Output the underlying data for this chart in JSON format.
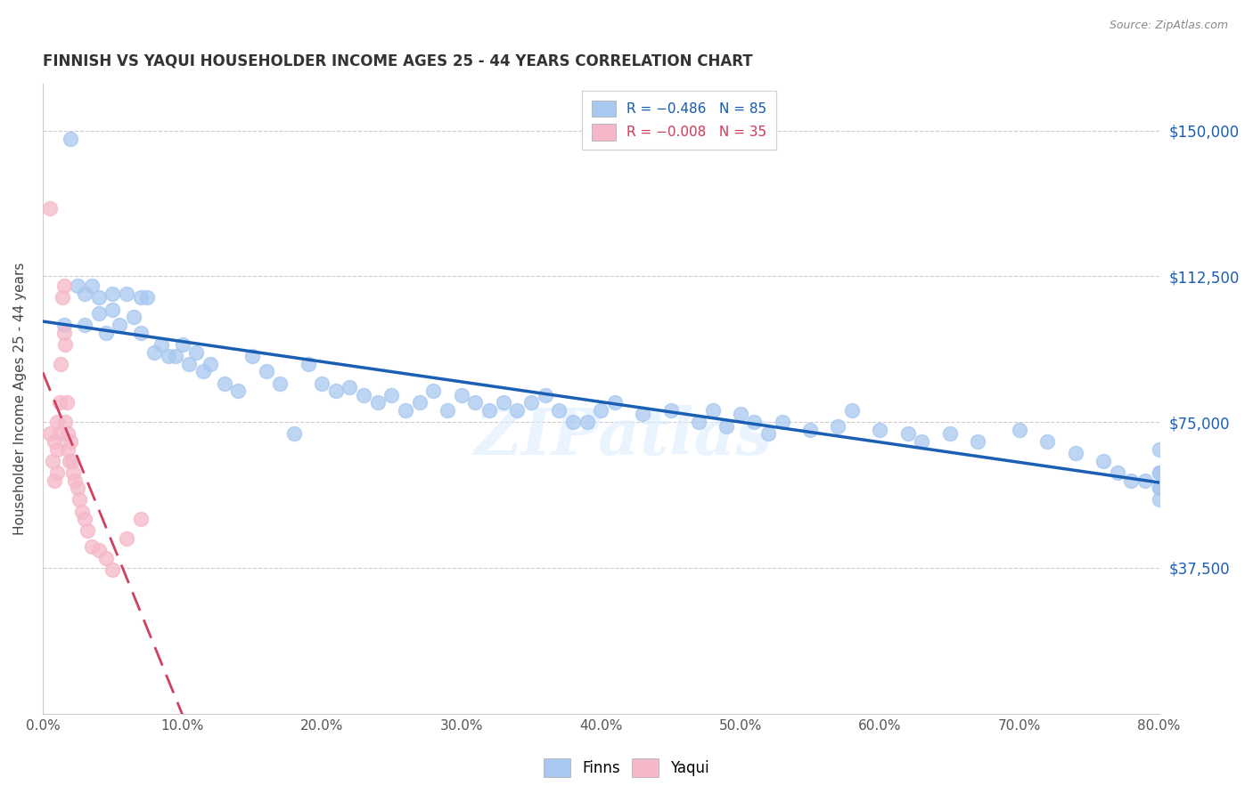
{
  "title": "FINNISH VS YAQUI HOUSEHOLDER INCOME AGES 25 - 44 YEARS CORRELATION CHART",
  "source": "Source: ZipAtlas.com",
  "ylabel": "Householder Income Ages 25 - 44 years",
  "xlabel_ticks": [
    "0.0%",
    "10.0%",
    "20.0%",
    "30.0%",
    "40.0%",
    "50.0%",
    "60.0%",
    "70.0%",
    "80.0%"
  ],
  "ytick_labels": [
    "$37,500",
    "$75,000",
    "$112,500",
    "$150,000"
  ],
  "ytick_values": [
    37500,
    75000,
    112500,
    150000
  ],
  "ylim": [
    0,
    162000
  ],
  "xlim": [
    0,
    0.8
  ],
  "blue_color": "#a8c8f0",
  "pink_color": "#f5b8c8",
  "blue_line_color": "#1a5fb4",
  "pink_line_color": "#d04060",
  "watermark": "ZIPatlas",
  "finns_x": [
    0.015,
    0.02,
    0.025,
    0.03,
    0.03,
    0.035,
    0.04,
    0.04,
    0.045,
    0.05,
    0.05,
    0.055,
    0.06,
    0.065,
    0.07,
    0.07,
    0.075,
    0.08,
    0.085,
    0.09,
    0.095,
    0.1,
    0.105,
    0.11,
    0.115,
    0.12,
    0.13,
    0.14,
    0.15,
    0.16,
    0.17,
    0.18,
    0.19,
    0.2,
    0.21,
    0.22,
    0.23,
    0.24,
    0.25,
    0.26,
    0.27,
    0.28,
    0.29,
    0.3,
    0.31,
    0.32,
    0.33,
    0.34,
    0.35,
    0.36,
    0.37,
    0.38,
    0.39,
    0.4,
    0.41,
    0.43,
    0.45,
    0.47,
    0.48,
    0.49,
    0.5,
    0.51,
    0.52,
    0.53,
    0.55,
    0.57,
    0.58,
    0.6,
    0.62,
    0.63,
    0.65,
    0.67,
    0.7,
    0.72,
    0.74,
    0.76,
    0.77,
    0.78,
    0.79,
    0.8,
    0.8,
    0.8,
    0.8,
    0.8,
    0.8
  ],
  "finns_y": [
    100000,
    148000,
    110000,
    108000,
    100000,
    110000,
    107000,
    103000,
    98000,
    108000,
    104000,
    100000,
    108000,
    102000,
    107000,
    98000,
    107000,
    93000,
    95000,
    92000,
    92000,
    95000,
    90000,
    93000,
    88000,
    90000,
    85000,
    83000,
    92000,
    88000,
    85000,
    72000,
    90000,
    85000,
    83000,
    84000,
    82000,
    80000,
    82000,
    78000,
    80000,
    83000,
    78000,
    82000,
    80000,
    78000,
    80000,
    78000,
    80000,
    82000,
    78000,
    75000,
    75000,
    78000,
    80000,
    77000,
    78000,
    75000,
    78000,
    74000,
    77000,
    75000,
    72000,
    75000,
    73000,
    74000,
    78000,
    73000,
    72000,
    70000,
    72000,
    70000,
    73000,
    70000,
    67000,
    65000,
    62000,
    60000,
    60000,
    58000,
    62000,
    68000,
    55000,
    58000,
    62000
  ],
  "yaqui_x": [
    0.005,
    0.005,
    0.007,
    0.008,
    0.008,
    0.01,
    0.01,
    0.01,
    0.012,
    0.012,
    0.013,
    0.014,
    0.015,
    0.015,
    0.016,
    0.016,
    0.017,
    0.018,
    0.018,
    0.019,
    0.02,
    0.021,
    0.022,
    0.023,
    0.025,
    0.026,
    0.028,
    0.03,
    0.032,
    0.035,
    0.04,
    0.045,
    0.05,
    0.06,
    0.07
  ],
  "yaqui_y": [
    130000,
    72000,
    65000,
    70000,
    60000,
    75000,
    68000,
    62000,
    80000,
    72000,
    90000,
    107000,
    110000,
    98000,
    95000,
    75000,
    80000,
    72000,
    68000,
    65000,
    70000,
    65000,
    62000,
    60000,
    58000,
    55000,
    52000,
    50000,
    47000,
    43000,
    42000,
    40000,
    37000,
    45000,
    50000
  ]
}
